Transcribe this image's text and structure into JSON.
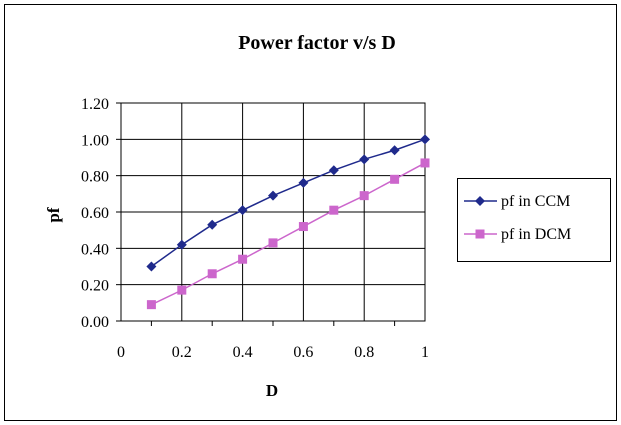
{
  "chart_data": {
    "type": "line",
    "title": "Power factor v/s D",
    "xlabel": "D",
    "ylabel": "pf",
    "xlim": [
      0,
      1
    ],
    "ylim": [
      0,
      1.2
    ],
    "x_ticks": [
      "0",
      "0.2",
      "0.4",
      "0.6",
      "0.8",
      "1"
    ],
    "y_ticks": [
      "0.00",
      "0.20",
      "0.40",
      "0.60",
      "0.80",
      "1.00",
      "1.20"
    ],
    "grid": true,
    "legend_position": "right",
    "series": [
      {
        "name": "pf in CCM",
        "color": "#1f2a8c",
        "marker": "diamond",
        "x": [
          0.1,
          0.2,
          0.3,
          0.4,
          0.5,
          0.6,
          0.7,
          0.8,
          0.9,
          1.0
        ],
        "y": [
          0.3,
          0.42,
          0.53,
          0.61,
          0.69,
          0.76,
          0.83,
          0.89,
          0.94,
          1.0
        ]
      },
      {
        "name": "pf in DCM",
        "color": "#cc66cc",
        "marker": "square",
        "x": [
          0.1,
          0.2,
          0.3,
          0.4,
          0.5,
          0.6,
          0.7,
          0.8,
          0.9,
          1.0
        ],
        "y": [
          0.09,
          0.17,
          0.26,
          0.34,
          0.43,
          0.52,
          0.61,
          0.69,
          0.78,
          0.87
        ]
      }
    ]
  }
}
